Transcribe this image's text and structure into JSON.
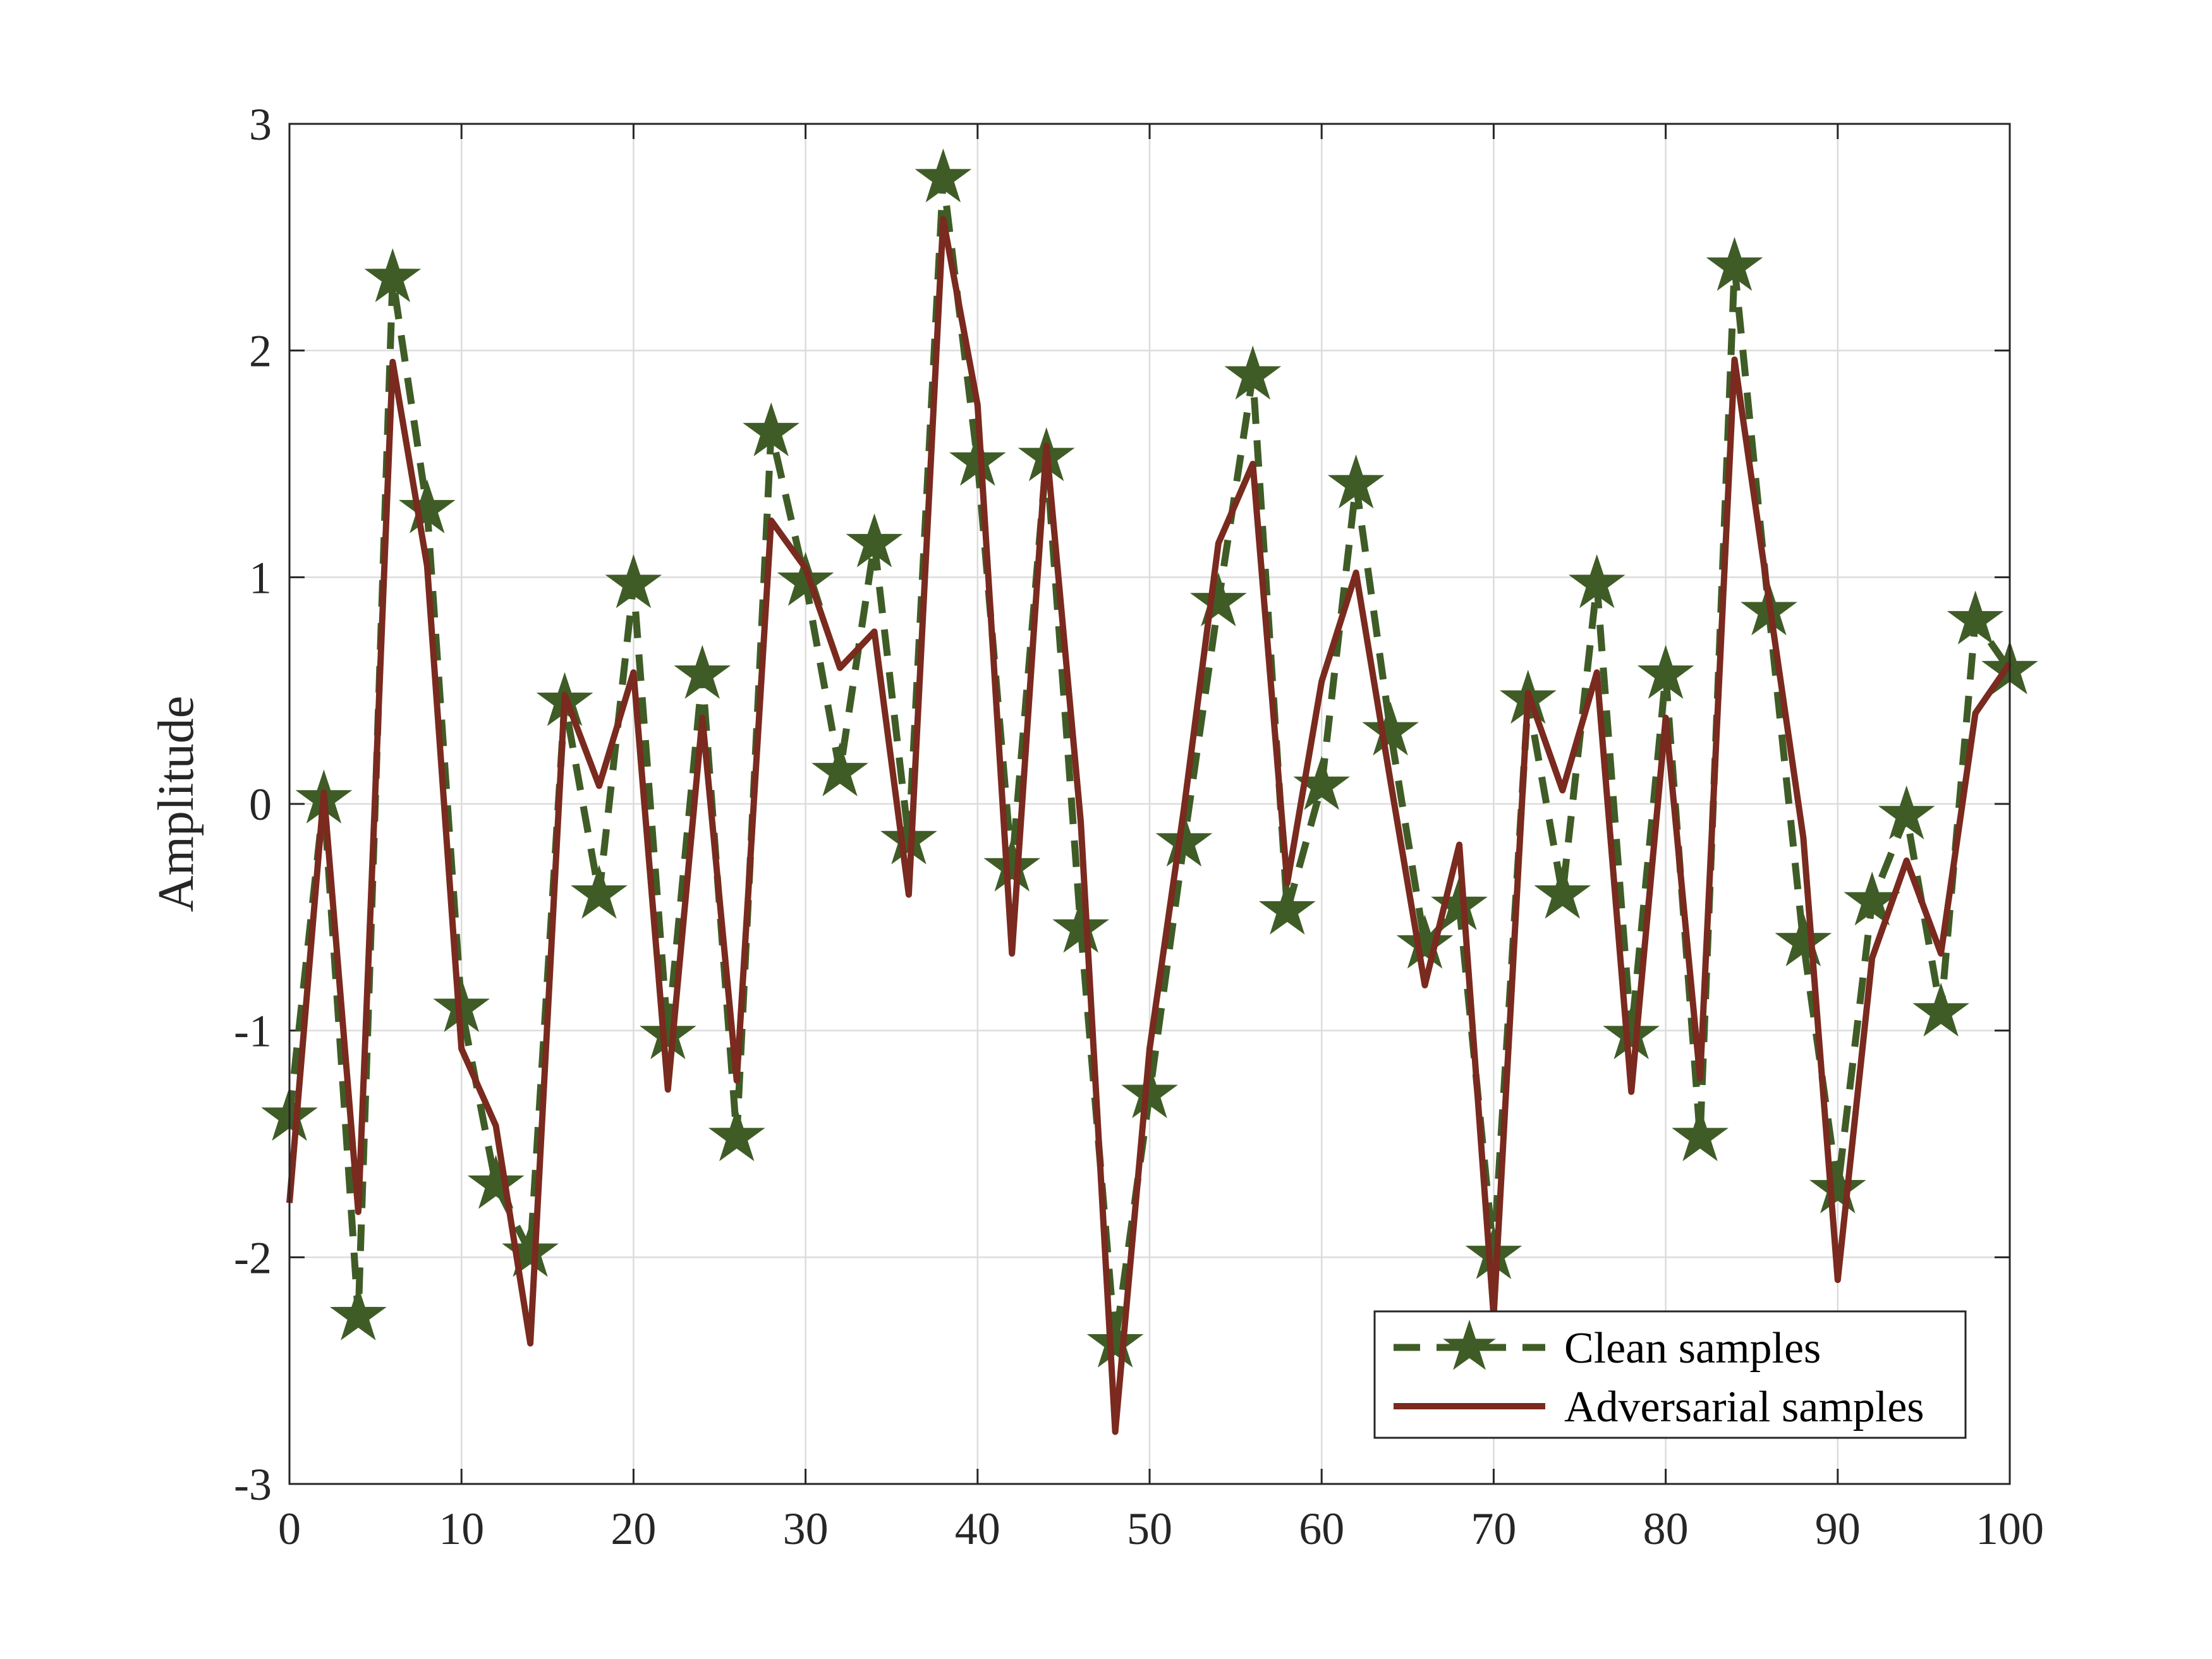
{
  "chart_data": {
    "type": "line",
    "title": "",
    "xlabel": "",
    "ylabel": "Amplitude",
    "xlim": [
      0,
      100
    ],
    "ylim": [
      -3,
      3
    ],
    "xticks": [
      0,
      10,
      20,
      30,
      40,
      50,
      60,
      70,
      80,
      90,
      100
    ],
    "yticks": [
      -3,
      -2,
      -1,
      0,
      1,
      2,
      3
    ],
    "xtick_labels": [
      "0",
      "10",
      "20",
      "30",
      "40",
      "50",
      "60",
      "70",
      "80",
      "90",
      "100"
    ],
    "ytick_labels": [
      "-3",
      "-2",
      "-1",
      "0",
      "1",
      "2",
      "3"
    ],
    "grid": true,
    "box": true,
    "legend_position": "bottom-right",
    "x": [
      0,
      2,
      4,
      6,
      8,
      10,
      12,
      14,
      16,
      18,
      20,
      22,
      24,
      26,
      28,
      30,
      32,
      34,
      36,
      38,
      40,
      42,
      44,
      46,
      48,
      50,
      52,
      54,
      56,
      58,
      60,
      62,
      64,
      66,
      68,
      70,
      72,
      74,
      76,
      78,
      80,
      82,
      84,
      86,
      88,
      90,
      92,
      94,
      96,
      98,
      100
    ],
    "series": [
      {
        "name": "Clean samples",
        "color": "#3f5c26",
        "line_style": "dashed",
        "marker": "star",
        "values": [
          -1.38,
          0.02,
          -2.26,
          2.32,
          1.3,
          -0.9,
          -1.68,
          -1.98,
          0.45,
          -0.4,
          0.97,
          -1.02,
          0.57,
          -1.47,
          1.64,
          0.98,
          0.14,
          1.15,
          -0.16,
          2.76,
          1.51,
          -0.28,
          1.53,
          -0.55,
          -2.38,
          -1.28,
          -0.17,
          0.89,
          1.89,
          -0.47,
          0.08,
          1.41,
          0.32,
          -0.62,
          -0.45,
          -1.99,
          0.46,
          -0.4,
          0.97,
          -1.02,
          0.57,
          -1.47,
          2.37,
          0.85,
          -0.61,
          -1.7,
          -0.43,
          -0.05,
          -0.92,
          0.81,
          0.59
        ]
      },
      {
        "name": "Adversarial samples",
        "color": "#7a2a1e",
        "line_style": "solid",
        "marker": "none",
        "values": [
          -1.76,
          0.05,
          -1.8,
          1.95,
          1.05,
          -1.08,
          -1.42,
          -2.38,
          0.48,
          0.08,
          0.58,
          -1.26,
          0.38,
          -1.22,
          1.25,
          1.04,
          0.6,
          0.76,
          -0.4,
          2.58,
          1.76,
          -0.66,
          1.58,
          -0.08,
          -2.77,
          -1.08,
          -0.02,
          1.15,
          1.5,
          -0.35,
          0.54,
          1.02,
          0.1,
          -0.8,
          -0.18,
          -2.26,
          0.49,
          0.06,
          0.58,
          -1.27,
          0.38,
          -1.21,
          1.96,
          0.9,
          -0.15,
          -2.1,
          -0.68,
          -0.25,
          -0.66,
          0.4,
          0.62
        ]
      }
    ]
  }
}
